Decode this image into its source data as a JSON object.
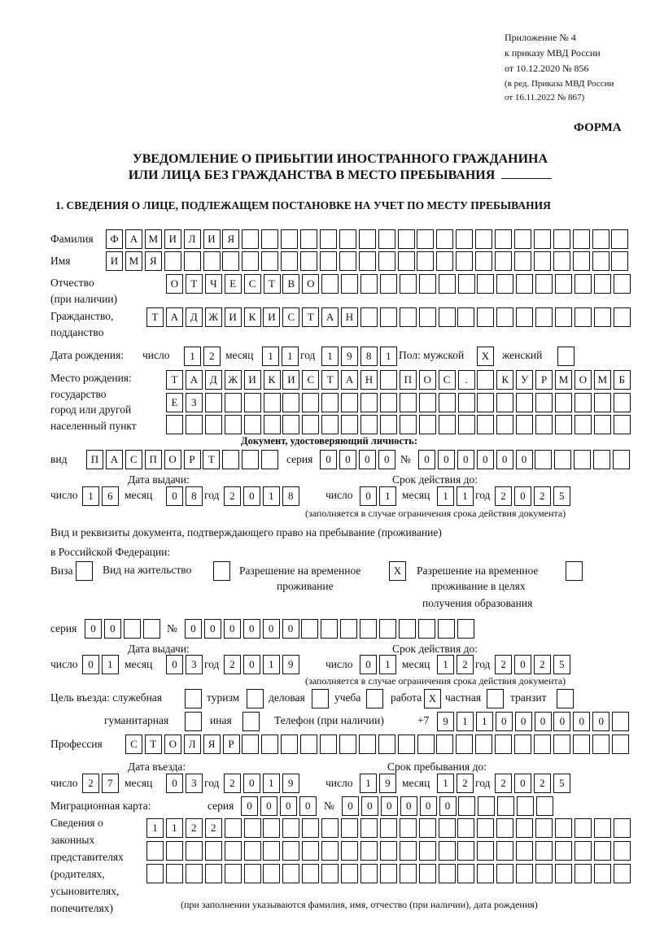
{
  "header": {
    "appendix": "Приложение № 4",
    "order": "к приказу МВД России",
    "order_date": "от 10.12.2020 № 856",
    "edition1": "(в ред. Приказа МВД России",
    "edition2": "от 16.11.2022 № 867)",
    "form_label": "ФОРМА",
    "title1": "УВЕДОМЛЕНИЕ О ПРИБЫТИИ ИНОСТРАННОГО ГРАЖДАНИНА",
    "title2": "ИЛИ ЛИЦА БЕЗ ГРАЖДАНСТВА В МЕСТО ПРЕБЫВАНИЯ",
    "section1": "1. СВЕДЕНИЯ О ЛИЦЕ, ПОДЛЕЖАЩЕМ ПОСТАНОВКЕ НА УЧЕТ ПО МЕСТУ ПРЕБЫВАНИЯ"
  },
  "labels": {
    "surname": "Фамилия",
    "name": "Имя",
    "patronymic": "Отчество",
    "patronymic_note": "(при наличии)",
    "citizenship": "Гражданство,",
    "citizenship2": "подданство",
    "birth_date": "Дата рождения:",
    "day": "число",
    "month": "месяц",
    "year": "год",
    "sex": "Пол: мужской",
    "female": "женский",
    "birth_place": "Место рождения:",
    "state": "государство",
    "city": "город или другой",
    "settlement": "населенный пункт",
    "id_doc": "Документ, удостоверяющий личность:",
    "kind": "вид",
    "series": "серия",
    "number": "№",
    "issue_date": "Дата выдачи:",
    "valid_until": "Срок действия до:",
    "validity_note": "(заполняется в случае ограничения срока действия документа)",
    "right_doc1": "Вид и реквизиты документа, подтверждающего право на пребывание (проживание)",
    "right_doc2": "в Российской Федерации:",
    "visa": "Виза",
    "residence": "Вид на жительство",
    "temp_res1": "Разрешение на временное",
    "temp_res2": "проживание",
    "temp_edu1": "Разрешение на временное",
    "temp_edu2": "проживание в целях",
    "temp_edu3": "получения образования",
    "purpose": "Цель въезда: служебная",
    "tourism": "туризм",
    "business": "деловая",
    "study": "учеба",
    "work": "работа",
    "private": "частная",
    "transit": "транзит",
    "humanitarian": "гуманитарная",
    "other": "иная",
    "phone": "Телефон (при наличии)",
    "phone_prefix": "+7",
    "profession": "Профессия",
    "entry_date": "Дата въезда:",
    "stay_until": "Срок пребывания до:",
    "migration_card": "Миграционная карта:",
    "reps1": "Сведения о",
    "reps2": "законных",
    "reps3": "представителях",
    "reps4": "(родителях,",
    "reps5": "усыновителях,",
    "reps6": "попечителях)",
    "reps_note": "(при заполнении указываются фамилия, имя, отчество (при наличии), дата рождения)"
  },
  "fields": {
    "surname": "ФАМИЛИЯ",
    "name": "ИМЯ",
    "patronymic": "ОТЧЕСТВО",
    "citizenship": "ТАДЖИКИСТАН",
    "birth_day": "12",
    "birth_month": "11",
    "birth_year": "1981",
    "sex_male": "X",
    "sex_female": "",
    "birth_place1": "ТАДЖИКИСТАН ПОС. КУРМОМБ",
    "birth_place2": "ЕЗ",
    "birth_place3": "",
    "id_kind": "ПАСПОРТ",
    "id_series": "0000",
    "id_number": "000000",
    "id_issue_day": "16",
    "id_issue_month": "08",
    "id_issue_year": "2018",
    "id_valid_day": "01",
    "id_valid_month": "11",
    "id_valid_year": "2025",
    "visa": "",
    "residence": "",
    "temp_res": "X",
    "temp_edu": "",
    "right_series": "00",
    "right_number": "000000",
    "right_issue_day": "01",
    "right_issue_month": "03",
    "right_issue_year": "2019",
    "right_valid_day": "01",
    "right_valid_month": "12",
    "right_valid_year": "2025",
    "p_official": "",
    "p_tourism": "",
    "p_business": "",
    "p_study": "",
    "p_work": "X",
    "p_private": "",
    "p_transit": "",
    "p_humanitarian": "",
    "p_other": "",
    "phone": "911000000",
    "profession": "СТОЛЯР",
    "entry_day": "27",
    "entry_month": "03",
    "entry_year": "2019",
    "stay_day": "19",
    "stay_month": "12",
    "stay_year": "2025",
    "mc_series": "0000",
    "mc_number": "000000",
    "reps1": "1122",
    "reps2": "",
    "reps3": ""
  }
}
